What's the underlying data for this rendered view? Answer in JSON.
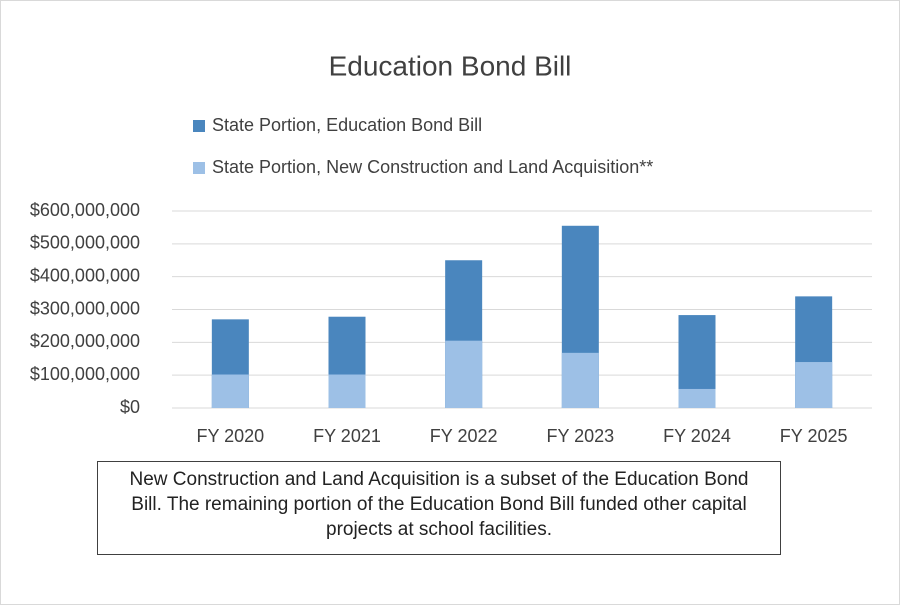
{
  "chart_data": {
    "type": "bar",
    "overlap": true,
    "title": "Education Bond Bill",
    "categories": [
      "FY 2020",
      "FY 2021",
      "FY 2022",
      "FY 2023",
      "FY 2024",
      "FY 2025"
    ],
    "series": [
      {
        "name": "State Portion, Education Bond Bill",
        "color": "#4a86be",
        "values": [
          270000000,
          278000000,
          450000000,
          555000000,
          283000000,
          340000000
        ]
      },
      {
        "name": "State Portion, New Construction and Land Acquisition**",
        "color": "#9dc0e6",
        "values": [
          102000000,
          102000000,
          205000000,
          168000000,
          58000000,
          140000000
        ]
      }
    ],
    "ylim": [
      0,
      600000000
    ],
    "yticks": [
      {
        "value": 0,
        "label": "$0"
      },
      {
        "value": 100000000,
        "label": "$100,000,000"
      },
      {
        "value": 200000000,
        "label": "$200,000,000"
      },
      {
        "value": 300000000,
        "label": "$300,000,000"
      },
      {
        "value": 400000000,
        "label": "$400,000,000"
      },
      {
        "value": 500000000,
        "label": "$500,000,000"
      },
      {
        "value": 600000000,
        "label": "$600,000,000"
      }
    ],
    "grid": true,
    "legend": "top",
    "annotation": "New Construction and Land Acquisition is a subset of the Education Bond Bill. The remaining portion of the Education Bond Bill funded other capital projects at school facilities."
  }
}
